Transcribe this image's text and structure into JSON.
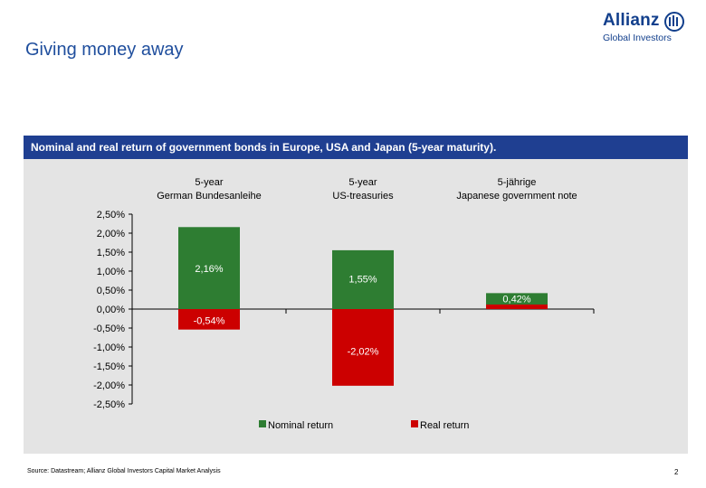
{
  "slide": {
    "title": "Giving money away",
    "panel_header": "Nominal and real return of government bonds in Europe, USA and Japan (5-year maturity).",
    "source": "Source: Datastream; Allianz Global Investors Capital Market Analysis",
    "page_number": "2"
  },
  "logo": {
    "word": "Allianz",
    "sub": "Global Investors"
  },
  "colors": {
    "nominal": "#2e7d32",
    "real": "#cc0000",
    "header_bg": "#1f3f91",
    "panel_bg": "#e4e4e4"
  },
  "chart_data": {
    "type": "bar",
    "categories": [
      [
        "5-year",
        "German Bundesanleihe"
      ],
      [
        "5-year",
        "US-treasuries"
      ],
      [
        "5-jährige",
        "Japanese government note"
      ]
    ],
    "series": [
      {
        "name": "Nominal return",
        "values": [
          2.16,
          1.55,
          0.42
        ],
        "labels": [
          "2,16%",
          "1,55%",
          "0,42%"
        ]
      },
      {
        "name": "Real return",
        "values": [
          -0.54,
          -2.02,
          0.12
        ],
        "labels": [
          "-0,54%",
          "-2,02%",
          ""
        ]
      }
    ],
    "ylim": [
      -2.5,
      2.5
    ],
    "yticks": [
      {
        "value": 2.5,
        "label": "2,50%"
      },
      {
        "value": 2.0,
        "label": "2,00%"
      },
      {
        "value": 1.5,
        "label": "1,50%"
      },
      {
        "value": 1.0,
        "label": "1,00%"
      },
      {
        "value": 0.5,
        "label": "0,50%"
      },
      {
        "value": 0.0,
        "label": "0,00%"
      },
      {
        "value": -0.5,
        "label": "-0,50%"
      },
      {
        "value": -1.0,
        "label": "-1,00%"
      },
      {
        "value": -1.5,
        "label": "-1,50%"
      },
      {
        "value": -2.0,
        "label": "-2,00%"
      },
      {
        "value": -2.5,
        "label": "-2,50%"
      }
    ],
    "legend_position": "bottom",
    "grid": false
  }
}
